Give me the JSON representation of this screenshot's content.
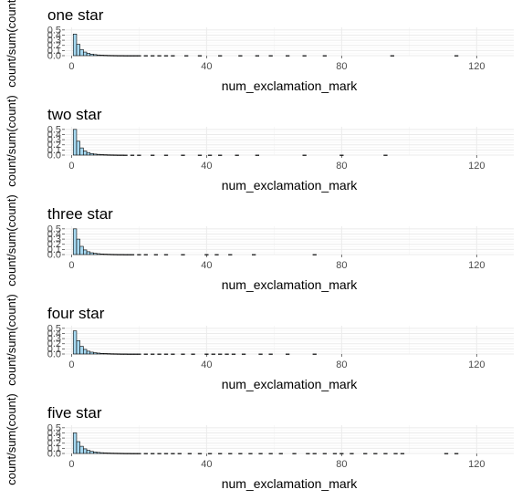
{
  "chart_data": [
    {
      "type": "bar",
      "title": "one star",
      "xlabel": "num_exclamation_mark",
      "ylabel": "count/sum(count)",
      "xlim": [
        -2,
        131
      ],
      "ylim": [
        0,
        0.55
      ],
      "xticks": [
        0,
        40,
        80,
        120
      ],
      "yticks": [
        0.0,
        0.1,
        0.2,
        0.3,
        0.4,
        0.5
      ],
      "x": [
        1,
        2,
        3,
        4,
        5,
        6,
        7,
        8,
        9,
        10,
        11,
        12,
        13,
        14,
        15,
        16,
        17,
        18,
        19,
        20,
        22,
        24,
        26,
        28,
        30,
        34,
        38,
        44,
        50,
        55,
        59,
        64,
        69,
        75,
        95,
        114
      ],
      "values": [
        0.42,
        0.22,
        0.12,
        0.07,
        0.045,
        0.03,
        0.02,
        0.014,
        0.01,
        0.008,
        0.006,
        0.005,
        0.004,
        0.003,
        0.003,
        0.002,
        0.002,
        0.002,
        0.002,
        0.002,
        0.002,
        0.002,
        0.002,
        0.002,
        0.002,
        0.002,
        0.002,
        0.002,
        0.002,
        0.002,
        0.002,
        0.002,
        0.002,
        0.002,
        0.002,
        0.002
      ]
    },
    {
      "type": "bar",
      "title": "two star",
      "xlabel": "num_exclamation_mark",
      "ylabel": "count/sum(count)",
      "xlim": [
        -2,
        131
      ],
      "ylim": [
        0,
        0.55
      ],
      "xticks": [
        0,
        40,
        80,
        120
      ],
      "yticks": [
        0.0,
        0.1,
        0.2,
        0.3,
        0.4,
        0.5
      ],
      "x": [
        1,
        2,
        3,
        4,
        5,
        6,
        7,
        8,
        9,
        10,
        11,
        12,
        13,
        14,
        15,
        16,
        18,
        20,
        24,
        28,
        33,
        38,
        41,
        44,
        49,
        55,
        69,
        80,
        93
      ],
      "values": [
        0.5,
        0.27,
        0.14,
        0.08,
        0.05,
        0.03,
        0.02,
        0.015,
        0.01,
        0.008,
        0.006,
        0.005,
        0.004,
        0.003,
        0.003,
        0.002,
        0.002,
        0.002,
        0.002,
        0.002,
        0.002,
        0.002,
        0.002,
        0.002,
        0.002,
        0.002,
        0.002,
        0.002,
        0.002
      ]
    },
    {
      "type": "bar",
      "title": "three star",
      "xlabel": "num_exclamation_mark",
      "ylabel": "count/sum(count)",
      "xlim": [
        -2,
        131
      ],
      "ylim": [
        0,
        0.55
      ],
      "xticks": [
        0,
        40,
        80,
        120
      ],
      "yticks": [
        0.0,
        0.1,
        0.2,
        0.3,
        0.4,
        0.5
      ],
      "x": [
        1,
        2,
        3,
        4,
        5,
        6,
        7,
        8,
        9,
        10,
        11,
        12,
        13,
        14,
        15,
        16,
        17,
        18,
        20,
        22,
        25,
        28,
        33,
        40,
        43,
        47,
        54,
        72
      ],
      "values": [
        0.5,
        0.3,
        0.16,
        0.09,
        0.055,
        0.035,
        0.024,
        0.017,
        0.012,
        0.009,
        0.007,
        0.005,
        0.004,
        0.003,
        0.003,
        0.002,
        0.002,
        0.002,
        0.002,
        0.002,
        0.002,
        0.002,
        0.002,
        0.002,
        0.002,
        0.002,
        0.002,
        0.002
      ]
    },
    {
      "type": "bar",
      "title": "four star",
      "xlabel": "num_exclamation_mark",
      "ylabel": "count/sum(count)",
      "xlim": [
        -2,
        131
      ],
      "ylim": [
        0,
        0.55
      ],
      "xticks": [
        0,
        40,
        80,
        120
      ],
      "yticks": [
        0.0,
        0.1,
        0.2,
        0.3,
        0.4,
        0.5
      ],
      "x": [
        1,
        2,
        3,
        4,
        5,
        6,
        7,
        8,
        9,
        10,
        11,
        12,
        13,
        14,
        15,
        16,
        17,
        18,
        19,
        20,
        22,
        24,
        26,
        28,
        30,
        33,
        36,
        40,
        42,
        44,
        46,
        48,
        51,
        56,
        59,
        64,
        72
      ],
      "values": [
        0.45,
        0.26,
        0.15,
        0.09,
        0.055,
        0.036,
        0.025,
        0.018,
        0.013,
        0.01,
        0.008,
        0.006,
        0.005,
        0.004,
        0.003,
        0.003,
        0.002,
        0.002,
        0.002,
        0.002,
        0.002,
        0.002,
        0.002,
        0.002,
        0.002,
        0.002,
        0.002,
        0.002,
        0.002,
        0.002,
        0.002,
        0.002,
        0.002,
        0.002,
        0.002,
        0.002,
        0.002
      ]
    },
    {
      "type": "bar",
      "title": "five star",
      "xlabel": "num_exclamation_mark",
      "ylabel": "count/sum(count)",
      "xlim": [
        -2,
        131
      ],
      "ylim": [
        0,
        0.55
      ],
      "xticks": [
        0,
        40,
        80,
        120
      ],
      "yticks": [
        0.0,
        0.1,
        0.2,
        0.3,
        0.4,
        0.5
      ],
      "x": [
        1,
        2,
        3,
        4,
        5,
        6,
        7,
        8,
        9,
        10,
        11,
        12,
        13,
        14,
        15,
        16,
        17,
        18,
        19,
        20,
        22,
        24,
        26,
        28,
        30,
        32,
        35,
        38,
        41,
        44,
        47,
        50,
        53,
        56,
        59,
        62,
        66,
        70,
        72,
        75,
        78,
        80,
        83,
        87,
        90,
        93,
        96,
        98,
        111,
        114
      ],
      "values": [
        0.4,
        0.23,
        0.14,
        0.09,
        0.06,
        0.04,
        0.028,
        0.02,
        0.015,
        0.011,
        0.009,
        0.007,
        0.006,
        0.005,
        0.004,
        0.003,
        0.003,
        0.002,
        0.002,
        0.002,
        0.002,
        0.002,
        0.002,
        0.002,
        0.002,
        0.002,
        0.002,
        0.002,
        0.002,
        0.002,
        0.002,
        0.002,
        0.002,
        0.002,
        0.002,
        0.002,
        0.002,
        0.002,
        0.002,
        0.002,
        0.002,
        0.002,
        0.002,
        0.002,
        0.002,
        0.002,
        0.002,
        0.002,
        0.002,
        0.002
      ]
    }
  ],
  "colors": {
    "bar_fill": "#a6d8f0",
    "bar_outline": "#000000",
    "grid": "#ebebeb",
    "tick_text": "#4d4d4d"
  }
}
